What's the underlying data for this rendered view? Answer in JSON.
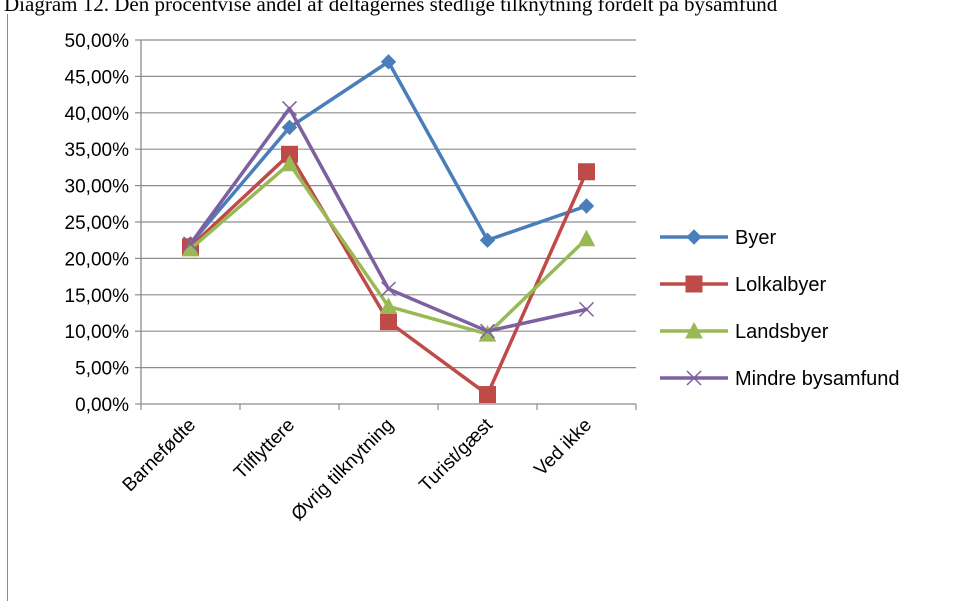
{
  "caption": "Diagram 12. Den procentvise andel af deltagernes stedlige tilknytning fordelt på bysamfund",
  "chart_data": {
    "type": "line",
    "title": "",
    "xlabel": "",
    "ylabel": "",
    "categories": [
      "Barnefødte",
      "Tilflyttere",
      "Øvrig tilknytning",
      "Turist/gæst",
      "Ved ikke"
    ],
    "ylim": [
      0,
      50
    ],
    "yticks": [
      0,
      5,
      10,
      15,
      20,
      25,
      30,
      35,
      40,
      45,
      50
    ],
    "ytick_labels": [
      "0,00%",
      "5,00%",
      "10,00%",
      "15,00%",
      "20,00%",
      "25,00%",
      "30,00%",
      "35,00%",
      "40,00%",
      "45,00%",
      "50,00%"
    ],
    "grid": true,
    "legend_position": "right",
    "series": [
      {
        "name": "Byer",
        "color": "#4a7ebb",
        "marker": "diamond",
        "values": [
          22.0,
          38.0,
          47.0,
          22.5,
          27.2
        ]
      },
      {
        "name": "Lolkalbyer",
        "color": "#be4b48",
        "marker": "square",
        "values": [
          21.6,
          34.3,
          11.3,
          1.3,
          31.9
        ]
      },
      {
        "name": "Landsbyer",
        "color": "#98b954",
        "marker": "triangle",
        "values": [
          21.3,
          33.0,
          13.4,
          9.6,
          22.7
        ]
      },
      {
        "name": "Mindre bysamfund",
        "color": "#7d60a0",
        "marker": "x",
        "values": [
          22.0,
          40.6,
          15.8,
          10.0,
          13.0
        ]
      }
    ]
  }
}
